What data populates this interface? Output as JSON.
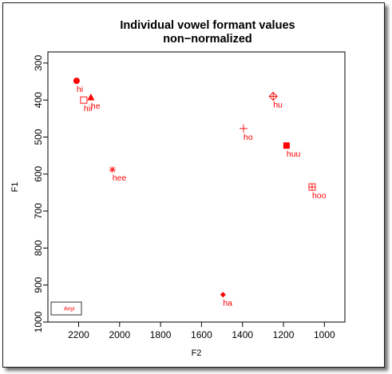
{
  "chart_data": {
    "type": "scatter",
    "title": "Individual vowel formant values",
    "subtitle": "non−normalized",
    "xlabel": "F2",
    "ylabel": "F1",
    "xlim": [
      2350,
      900
    ],
    "ylim": [
      1000,
      270
    ],
    "x_reversed": true,
    "y_reversed": true,
    "x_ticks": [
      2200,
      2000,
      1800,
      1600,
      1400,
      1200,
      1000
    ],
    "x_tick_labels": [
      "2200",
      "2000",
      "1800",
      "1600",
      "1400",
      "1200",
      "1000"
    ],
    "y_ticks": [
      300,
      400,
      500,
      600,
      700,
      800,
      900,
      1000
    ],
    "y_tick_labels": [
      "300",
      "400",
      "500",
      "600",
      "700",
      "800",
      "900",
      "1000"
    ],
    "grid": false,
    "legend": {
      "position": "bottom-left",
      "entries": [
        "Anyi"
      ]
    },
    "color": "#ff0000",
    "points": [
      {
        "label": "hi",
        "x": 2210,
        "y": 348,
        "marker": "filled-circle"
      },
      {
        "label": "hii",
        "x": 2175,
        "y": 400,
        "marker": "open-square"
      },
      {
        "label": "he",
        "x": 2140,
        "y": 393,
        "marker": "filled-triangle"
      },
      {
        "label": "hee",
        "x": 2035,
        "y": 588,
        "marker": "asterisk"
      },
      {
        "label": "hu",
        "x": 1250,
        "y": 390,
        "marker": "diamond-plus"
      },
      {
        "label": "ho",
        "x": 1395,
        "y": 477,
        "marker": "plus"
      },
      {
        "label": "huu",
        "x": 1185,
        "y": 523,
        "marker": "filled-square"
      },
      {
        "label": "hoo",
        "x": 1060,
        "y": 635,
        "marker": "square-plus"
      },
      {
        "label": "ha",
        "x": 1495,
        "y": 926,
        "marker": "filled-diamond"
      }
    ]
  }
}
